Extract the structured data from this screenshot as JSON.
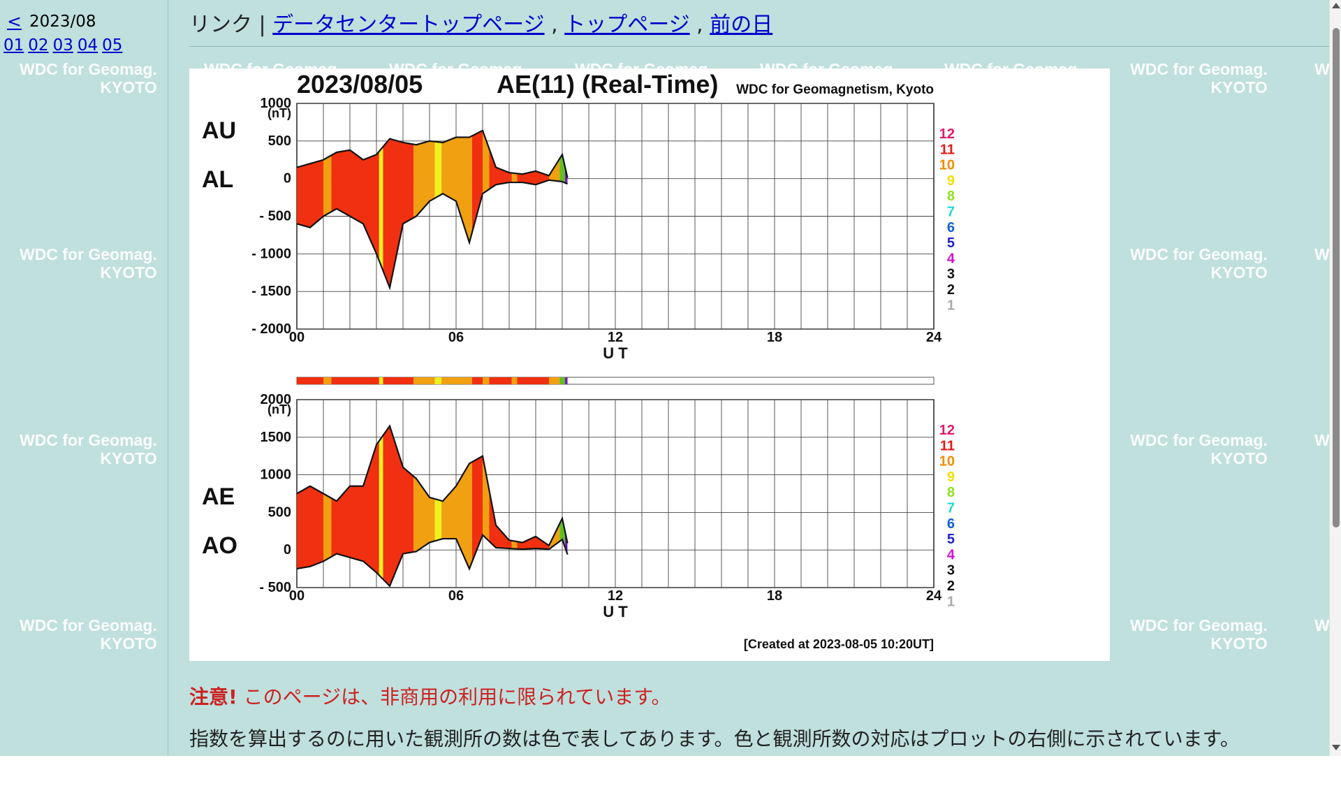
{
  "left_nav": {
    "prev_label": "<",
    "month": "2023/08",
    "days": [
      "01",
      "02",
      "03",
      "04",
      "05"
    ]
  },
  "topbar": {
    "prefix": "リンク | ",
    "links": [
      "データセンタートップページ",
      "トップページ",
      "前の日"
    ],
    "separator": " , "
  },
  "watermark": {
    "line1": "WDC for Geomag.",
    "line2": "KYOTO"
  },
  "warning": {
    "bold": "注意!",
    "text": " このページは、非商用の利用に限られています。"
  },
  "note": "指数を算出するのに用いた観測所の数は色で表してあります。色と観測所数の対応はプロットの右側に示されています。",
  "chart_data": [
    {
      "type": "area",
      "title": "AE(11) (Real-Time)",
      "date": "2023/08/05",
      "source": "WDC for Geomagnetism, Kyoto",
      "xlabel": "U T",
      "x_ticks": [
        "00",
        "06",
        "12",
        "18",
        "24"
      ],
      "xlim": [
        0,
        24
      ],
      "ylim": [
        -2000,
        1000
      ],
      "y_ticks": [
        "1000",
        "500",
        "0",
        "- 500",
        "- 1000",
        "- 1500",
        "- 2000"
      ],
      "y_unit": "(nT)",
      "grid": true,
      "side_labels": [
        "AU",
        "AL"
      ],
      "series": [
        {
          "name": "AU",
          "x": [
            0,
            0.5,
            1,
            1.5,
            2,
            2.5,
            3,
            3.5,
            4,
            4.5,
            5,
            5.5,
            6,
            6.5,
            7,
            7.5,
            8,
            8.5,
            9,
            9.5,
            10,
            10.2
          ],
          "values": [
            150,
            200,
            250,
            350,
            380,
            250,
            320,
            530,
            480,
            450,
            500,
            480,
            550,
            550,
            640,
            150,
            80,
            60,
            100,
            40,
            320,
            10
          ]
        },
        {
          "name": "AL",
          "x": [
            0,
            0.5,
            1,
            1.5,
            2,
            2.5,
            3,
            3.5,
            4,
            4.5,
            5,
            5.5,
            6,
            6.5,
            7,
            7.5,
            8,
            8.5,
            9,
            9.5,
            10,
            10.2
          ],
          "values": [
            -600,
            -650,
            -500,
            -400,
            -500,
            -600,
            -1000,
            -1450,
            -600,
            -500,
            -300,
            -200,
            -300,
            -850,
            -200,
            -80,
            -50,
            -50,
            -80,
            -20,
            -40,
            -70
          ]
        }
      ]
    },
    {
      "type": "area",
      "xlabel": "U T",
      "x_ticks": [
        "00",
        "06",
        "12",
        "18",
        "24"
      ],
      "xlim": [
        0,
        24
      ],
      "ylim": [
        -500,
        2000
      ],
      "y_ticks": [
        "2000",
        "1500",
        "1000",
        "500",
        "0",
        "- 500"
      ],
      "y_unit": "(nT)",
      "grid": true,
      "side_labels": [
        "AE",
        "AO"
      ],
      "series": [
        {
          "name": "AE",
          "x": [
            0,
            0.5,
            1,
            1.5,
            2,
            2.5,
            3,
            3.5,
            4,
            4.5,
            5,
            5.5,
            6,
            6.5,
            7,
            7.5,
            8,
            8.5,
            9,
            9.5,
            10,
            10.2
          ],
          "values": [
            750,
            850,
            750,
            650,
            850,
            850,
            1400,
            1650,
            1100,
            950,
            700,
            650,
            850,
            1150,
            1250,
            330,
            130,
            100,
            180,
            60,
            420,
            90
          ]
        },
        {
          "name": "AO",
          "x": [
            0,
            0.5,
            1,
            1.5,
            2,
            2.5,
            3,
            3.5,
            4,
            4.5,
            5,
            5.5,
            6,
            6.5,
            7,
            7.5,
            8,
            8.5,
            9,
            9.5,
            10,
            10.2
          ],
          "values": [
            -250,
            -220,
            -150,
            -50,
            -100,
            -150,
            -300,
            -480,
            -50,
            -20,
            100,
            150,
            150,
            -250,
            200,
            30,
            20,
            10,
            20,
            10,
            140,
            -60
          ]
        }
      ]
    }
  ],
  "station_legend": {
    "counts": [
      "12",
      "11",
      "10",
      "9",
      "8",
      "7",
      "6",
      "5",
      "4",
      "3",
      "2",
      "1"
    ],
    "colors": [
      "#e8186a",
      "#e81818",
      "#f08c00",
      "#f0e000",
      "#90e020",
      "#20d8d0",
      "#1060d8",
      "#2020d0",
      "#d010d0",
      "#111111",
      "#111111",
      "#aaaaaa"
    ]
  },
  "fill_segments": {
    "colors": {
      "red": "#f03010",
      "orange": "#f0a010",
      "yellow": "#f0f020",
      "green": "#60c020",
      "purple": "#7020b0"
    },
    "pattern": [
      [
        0,
        1,
        "red"
      ],
      [
        1,
        1.3,
        "orange"
      ],
      [
        1.3,
        3.1,
        "red"
      ],
      [
        3.1,
        3.25,
        "yellow"
      ],
      [
        3.25,
        3.5,
        "red"
      ],
      [
        3.5,
        4.4,
        "red"
      ],
      [
        4.4,
        5.2,
        "orange"
      ],
      [
        5.2,
        5.45,
        "yellow"
      ],
      [
        5.45,
        6.6,
        "orange"
      ],
      [
        6.6,
        7.0,
        "red"
      ],
      [
        7.0,
        7.25,
        "orange"
      ],
      [
        7.25,
        8.1,
        "red"
      ],
      [
        8.1,
        8.3,
        "orange"
      ],
      [
        8.3,
        9.5,
        "red"
      ],
      [
        9.5,
        9.9,
        "orange"
      ],
      [
        9.9,
        10.1,
        "green"
      ],
      [
        10.1,
        10.2,
        "purple"
      ]
    ]
  },
  "created_at": "[Created at 2023-08-05 10:20UT]"
}
